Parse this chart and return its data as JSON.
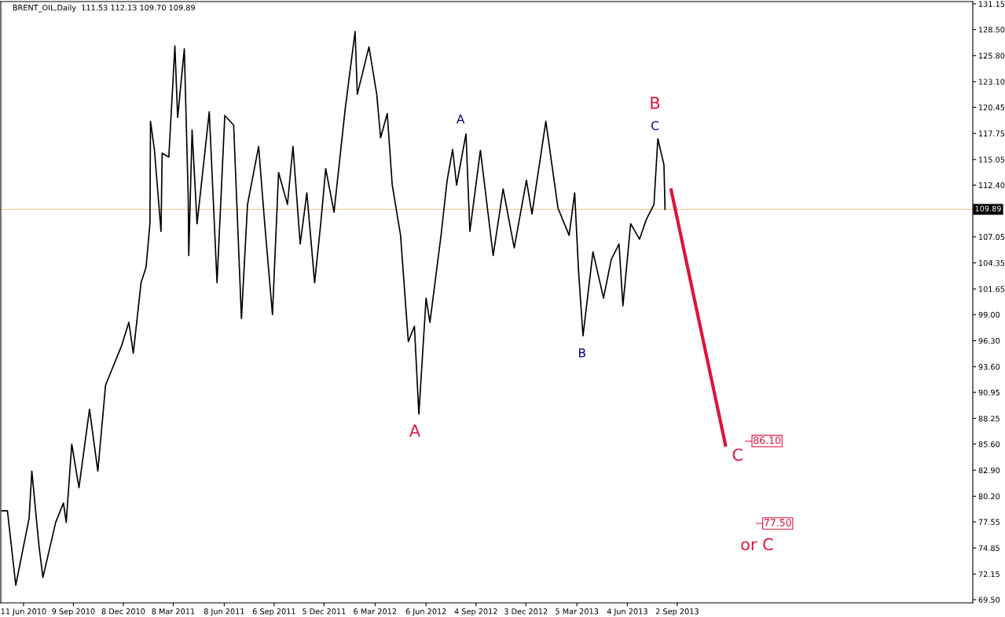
{
  "chart_data": {
    "type": "line",
    "title": "BRENT_OIL,Daily  111.53 112.13 109.70 109.89",
    "series": [
      {
        "color": "#000000",
        "x": [
          "2010-05-03",
          "2010-05-13",
          "2010-05-28",
          "2010-06-21",
          "2010-06-26",
          "2010-07-09",
          "2010-07-16",
          "2010-08-08",
          "2010-08-22",
          "2010-08-27",
          "2010-09-06",
          "2010-09-19",
          "2010-10-08",
          "2010-10-23",
          "2010-11-06",
          "2010-12-05",
          "2010-12-18",
          "2010-12-26",
          "2011-01-09",
          "2011-01-18",
          "2011-01-25",
          "2011-01-26",
          "2011-02-02",
          "2011-02-14",
          "2011-02-16",
          "2011-02-28",
          "2011-03-11",
          "2011-03-16",
          "2011-03-28",
          "2011-04-04",
          "2011-04-05",
          "2011-04-11",
          "2011-04-20",
          "2011-05-12",
          "2011-05-26",
          "2011-06-09",
          "2011-06-25",
          "2011-07-09",
          "2011-07-20",
          "2011-08-09",
          "2011-08-20",
          "2011-09-03",
          "2011-09-14",
          "2011-09-30",
          "2011-10-10",
          "2011-10-23",
          "2011-11-04",
          "2011-11-18",
          "2011-11-29",
          "2011-12-08",
          "2011-12-23",
          "2012-01-12",
          "2012-01-30",
          "2012-02-03",
          "2012-02-24",
          "2012-03-09",
          "2012-03-16",
          "2012-03-28",
          "2012-04-06",
          "2012-04-21",
          "2012-05-05",
          "2012-05-16",
          "2012-05-24",
          "2012-06-06",
          "2012-06-13",
          "2012-07-03",
          "2012-07-14",
          "2012-07-24",
          "2012-07-31",
          "2012-08-17",
          "2012-08-24",
          "2012-09-12",
          "2012-10-05",
          "2012-10-23",
          "2012-11-12",
          "2012-12-04",
          "2012-12-14",
          "2013-01-08",
          "2013-01-30",
          "2013-02-19",
          "2013-03-01",
          "2013-03-08",
          "2013-03-16",
          "2013-04-03",
          "2013-04-22",
          "2013-05-06",
          "2013-05-20",
          "2013-05-27",
          "2013-06-10",
          "2013-06-26",
          "2013-07-08",
          "2013-07-22",
          "2013-07-29",
          "2013-08-09",
          "2013-08-11"
        ],
        "values": [
          78.7,
          78.7,
          71.0,
          77.9,
          82.8,
          75.0,
          71.8,
          77.5,
          79.5,
          77.5,
          85.6,
          81.1,
          89.2,
          82.8,
          91.7,
          95.8,
          98.2,
          95.0,
          102.3,
          103.9,
          108.4,
          119.0,
          116.1,
          107.6,
          115.7,
          115.3,
          126.8,
          119.4,
          126.5,
          111.2,
          105.1,
          118.1,
          108.4,
          120.0,
          102.3,
          119.6,
          118.6,
          98.6,
          110.4,
          116.4,
          108.4,
          99.0,
          113.7,
          110.4,
          116.4,
          106.3,
          111.6,
          102.3,
          108.4,
          114.1,
          109.6,
          120.2,
          128.3,
          121.8,
          126.7,
          121.8,
          117.3,
          119.8,
          112.4,
          107.2,
          96.2,
          97.8,
          88.7,
          100.7,
          98.2,
          107.2,
          112.9,
          116.1,
          112.4,
          117.7,
          107.6,
          116.0,
          105.1,
          112.0,
          105.9,
          112.9,
          109.4,
          119.0,
          110.0,
          107.2,
          111.6,
          103.5,
          96.8,
          105.5,
          100.7,
          104.7,
          106.3,
          99.9,
          108.4,
          106.8,
          108.8,
          110.4,
          117.2,
          114.5,
          109.9
        ]
      },
      {
        "color": "#dc143c",
        "x": [
          "2013-08-22",
          "2013-11-28"
        ],
        "values": [
          111.9,
          85.5
        ]
      }
    ],
    "xlim": [
      "2010-05-01",
      "2015-02-17"
    ],
    "xticks": [
      {
        "value": "2010-06-11",
        "label": "11 Jun 2010"
      },
      {
        "value": "2010-09-09",
        "label": "9 Sep 2010"
      },
      {
        "value": "2010-12-08",
        "label": "8 Dec 2010"
      },
      {
        "value": "2011-03-08",
        "label": "8 Mar 2011"
      },
      {
        "value": "2011-06-08",
        "label": "8 Jun 2011"
      },
      {
        "value": "2011-09-06",
        "label": "6 Sep 2011"
      },
      {
        "value": "2011-12-05",
        "label": "5 Dec 2011"
      },
      {
        "value": "2012-03-06",
        "label": "6 Mar 2012"
      },
      {
        "value": "2012-06-06",
        "label": "6 Jun 2012"
      },
      {
        "value": "2012-09-04",
        "label": "4 Sep 2012"
      },
      {
        "value": "2012-12-03",
        "label": "3 Dec 2012"
      },
      {
        "value": "2013-03-05",
        "label": "5 Mar 2013"
      },
      {
        "value": "2013-06-04",
        "label": "4 Jun 2013"
      },
      {
        "value": "2013-09-02",
        "label": "2 Sep 2013"
      }
    ],
    "ylim": [
      69.17,
      131.39
    ],
    "yticks": [
      {
        "value": 69.5,
        "label": "69.50"
      },
      {
        "value": 72.15,
        "label": "72.15"
      },
      {
        "value": 74.85,
        "label": "74.85"
      },
      {
        "value": 77.55,
        "label": "77.55"
      },
      {
        "value": 80.2,
        "label": "80.20"
      },
      {
        "value": 82.9,
        "label": "82.90"
      },
      {
        "value": 85.6,
        "label": "85.60"
      },
      {
        "value": 88.25,
        "label": "88.25"
      },
      {
        "value": 90.95,
        "label": "90.95"
      },
      {
        "value": 93.6,
        "label": "93.60"
      },
      {
        "value": 96.3,
        "label": "96.30"
      },
      {
        "value": 99.0,
        "label": "99.00"
      },
      {
        "value": 101.65,
        "label": "101.65"
      },
      {
        "value": 104.35,
        "label": "104.35"
      },
      {
        "value": 107.05,
        "label": "107.05"
      },
      {
        "value": 112.4,
        "label": "112.40"
      },
      {
        "value": 115.05,
        "label": "115.05"
      },
      {
        "value": 117.75,
        "label": "117.75"
      },
      {
        "value": 120.45,
        "label": "120.45"
      },
      {
        "value": 123.1,
        "label": "123.10"
      },
      {
        "value": 125.8,
        "label": "125.80"
      },
      {
        "value": 128.5,
        "label": "128.50"
      },
      {
        "value": 131.15,
        "label": "131.15"
      }
    ],
    "ref_lines": [
      {
        "axis": "y",
        "value": 109.89,
        "label": "109.89",
        "color": "#f5d0a0"
      }
    ],
    "annotations": [
      "A",
      "A",
      "B",
      "B",
      "C",
      "C",
      "86.10",
      "77.50",
      "or C"
    ],
    "grid": false,
    "legend": false,
    "marker": "none",
    "line_style": "solid"
  }
}
